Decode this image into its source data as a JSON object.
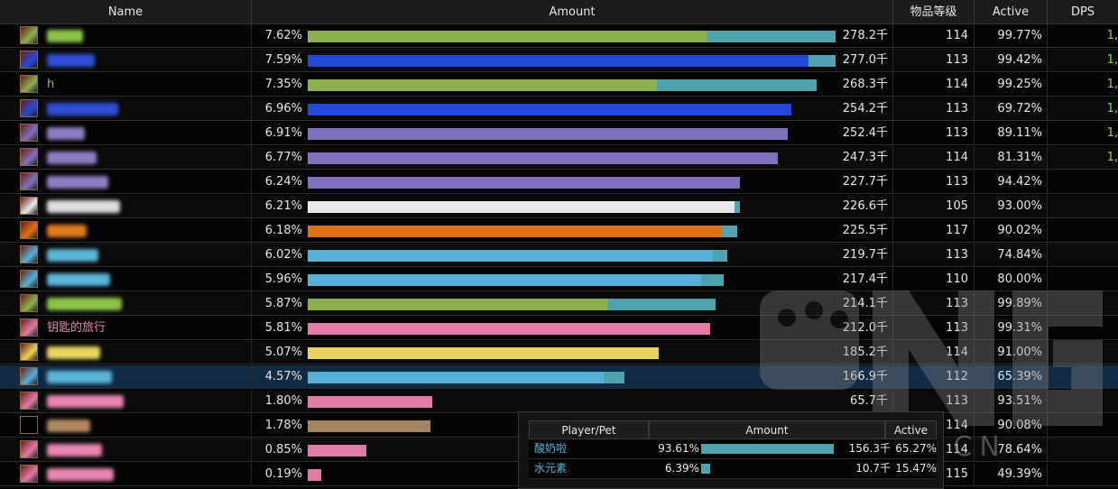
{
  "headers": {
    "name": "Name",
    "amount": "Amount",
    "ilvl": "物品等级",
    "active": "Active",
    "dps": "DPS"
  },
  "colors": {
    "bar_secondary": "#4fa3b0",
    "selected_row": "#0f2b45",
    "dps_text": "#8fd14f"
  },
  "rows": [
    {
      "icon": "fire-mage-icon",
      "name": "",
      "name_color": "#8bc34a",
      "pct": "7.62%",
      "amount": "278.2千",
      "ilvl": "114",
      "active": "99.77%",
      "dps": "1,",
      "bar_color": "#8db04e",
      "primary_pct": 75.5,
      "secondary_pct": 100,
      "alt": false
    },
    {
      "icon": "fire-mage-icon",
      "name": "",
      "name_color": "#2f4fd6",
      "pct": "7.59%",
      "amount": "277.0千",
      "ilvl": "113",
      "active": "99.42%",
      "dps": "1,",
      "bar_color": "#2648d8",
      "primary_pct": 94.8,
      "secondary_pct": 100,
      "alt": true
    },
    {
      "icon": "fire-mage-icon",
      "name": "h",
      "name_color": "#8bc34a",
      "pct": "7.35%",
      "amount": "268.3千",
      "ilvl": "114",
      "active": "99.25%",
      "dps": "1,",
      "bar_color": "#8db04e",
      "primary_pct": 66.2,
      "secondary_pct": 96.4,
      "alt": false
    },
    {
      "icon": "arcane-spell-icon",
      "name": "",
      "name_color": "#2f4fd6",
      "pct": "6.96%",
      "amount": "254.2千",
      "ilvl": "113",
      "active": "69.72%",
      "dps": "1,",
      "bar_color": "#2648d8",
      "primary_pct": 91.6,
      "secondary_pct": 91.6,
      "alt": true
    },
    {
      "icon": "shadow-spell-icon",
      "name": "",
      "name_color": "#8e7cc3",
      "pct": "6.91%",
      "amount": "252.4千",
      "ilvl": "113",
      "active": "89.11%",
      "dps": "1,",
      "bar_color": "#8270be",
      "primary_pct": 90.9,
      "secondary_pct": 90.9,
      "alt": false
    },
    {
      "icon": "shadow-spell-icon",
      "name": "",
      "name_color": "#8e7cc3",
      "pct": "6.77%",
      "amount": "247.3千",
      "ilvl": "114",
      "active": "81.31%",
      "dps": "1,",
      "bar_color": "#8270be",
      "primary_pct": 89.1,
      "secondary_pct": 89.1,
      "alt": true
    },
    {
      "icon": "shadow-spell-icon",
      "name": "",
      "name_color": "#8e7cc3",
      "pct": "6.24%",
      "amount": "227.7千",
      "ilvl": "113",
      "active": "94.42%",
      "dps": "",
      "bar_color": "#8270be",
      "primary_pct": 81.9,
      "secondary_pct": 81.9,
      "alt": false
    },
    {
      "icon": "rogue-blade-icon",
      "name": "",
      "name_color": "#dddddd",
      "pct": "6.21%",
      "amount": "226.6千",
      "ilvl": "105",
      "active": "93.00%",
      "dps": "",
      "bar_color": "#e8e8e8",
      "primary_pct": 80.9,
      "secondary_pct": 81.8,
      "alt": true
    },
    {
      "icon": "starfire-icon",
      "name": "",
      "name_color": "#e07a1a",
      "pct": "6.18%",
      "amount": "225.5千",
      "ilvl": "117",
      "active": "90.02%",
      "dps": "",
      "bar_color": "#e0700f",
      "primary_pct": 78.3,
      "secondary_pct": 81.3,
      "alt": false
    },
    {
      "icon": "fire-blast-icon",
      "name": "",
      "name_color": "#5ab4d6",
      "pct": "6.02%",
      "amount": "219.7千",
      "ilvl": "113",
      "active": "74.84%",
      "dps": "",
      "bar_color": "#56b0d6",
      "primary_pct": 76.7,
      "secondary_pct": 79.5,
      "alt": true
    },
    {
      "icon": "fire-blast-icon",
      "name": "",
      "name_color": "#5ab4d6",
      "pct": "5.96%",
      "amount": "217.4千",
      "ilvl": "110",
      "active": "80.00%",
      "dps": "",
      "bar_color": "#56b0d6",
      "primary_pct": 74.6,
      "secondary_pct": 78.8,
      "alt": false
    },
    {
      "icon": "fire-mage-icon",
      "name": "",
      "name_color": "#8bc34a",
      "pct": "5.87%",
      "amount": "214.1千",
      "ilvl": "113",
      "active": "99.89%",
      "dps": "",
      "bar_color": "#8db04e",
      "primary_pct": 56.8,
      "secondary_pct": 77.2,
      "alt": true
    },
    {
      "icon": "key-scroll-icon",
      "name": "钥匙的旅行",
      "name_color": "#e885b0",
      "pct": "5.81%",
      "amount": "212.0千",
      "ilvl": "113",
      "active": "99.31%",
      "dps": "",
      "bar_color": "#e27aa6",
      "primary_pct": 76.2,
      "secondary_pct": 76.2,
      "alt": false
    },
    {
      "icon": "lightning-icon",
      "name": "",
      "name_color": "#e8d660",
      "pct": "5.07%",
      "amount": "185.2千",
      "ilvl": "114",
      "active": "91.00%",
      "dps": "",
      "bar_color": "#ead35a",
      "primary_pct": 66.5,
      "secondary_pct": 66.5,
      "alt": true
    },
    {
      "icon": "fire-blast-icon",
      "name": "",
      "name_color": "#5ab4d6",
      "pct": "4.57%",
      "amount": "166.9千",
      "ilvl": "112",
      "active": "65.39%",
      "dps": "",
      "bar_color": "#56b0d6",
      "primary_pct": 56.0,
      "secondary_pct": 60.0,
      "alt": false,
      "selected": true
    },
    {
      "icon": "shadow-spell-icon",
      "name": "",
      "name_color": "#e885b0",
      "pct": "1.80%",
      "amount": "65.7千",
      "ilvl": "113",
      "active": "93.51%",
      "dps": "",
      "bar_color": "#e27aa6",
      "primary_pct": 23.6,
      "secondary_pct": 23.6,
      "alt": true
    },
    {
      "icon": "empty-icon",
      "name": "",
      "name_color": "#b08860",
      "pct": "1.78%",
      "amount": "",
      "ilvl": "114",
      "active": "90.08%",
      "dps": "",
      "bar_color": "#a58362",
      "primary_pct": 23.3,
      "secondary_pct": 23.3,
      "alt": false
    },
    {
      "icon": "shadow-spell-icon",
      "name": "",
      "name_color": "#e885b0",
      "pct": "0.85%",
      "amount": "",
      "ilvl": "114",
      "active": "78.64%",
      "dps": "",
      "bar_color": "#e27aa6",
      "primary_pct": 11.1,
      "secondary_pct": 11.1,
      "alt": true
    },
    {
      "icon": "skull-icon",
      "name": "",
      "name_color": "#e885b0",
      "pct": "0.19%",
      "amount": "",
      "ilvl": "115",
      "active": "49.39%",
      "dps": "",
      "bar_color": "#e27aa6",
      "primary_pct": 2.5,
      "secondary_pct": 2.5,
      "alt": false
    }
  ],
  "popup": {
    "headers": {
      "player": "Player/Pet",
      "amount": "Amount",
      "active": "Active"
    },
    "rows": [
      {
        "name": "酸奶啦",
        "pct": "93.61%",
        "amount": "156.3千",
        "active": "65.27%",
        "bar_pct": 100
      },
      {
        "name": "水元素",
        "pct": "6.39%",
        "amount": "10.7千",
        "active": "15.47%",
        "bar_pct": 6.8
      }
    ],
    "name_color": "#5ab4d6",
    "bar_color": "#4fa3b0"
  },
  "watermark": {
    "text": "BBS.NGA.CN"
  }
}
